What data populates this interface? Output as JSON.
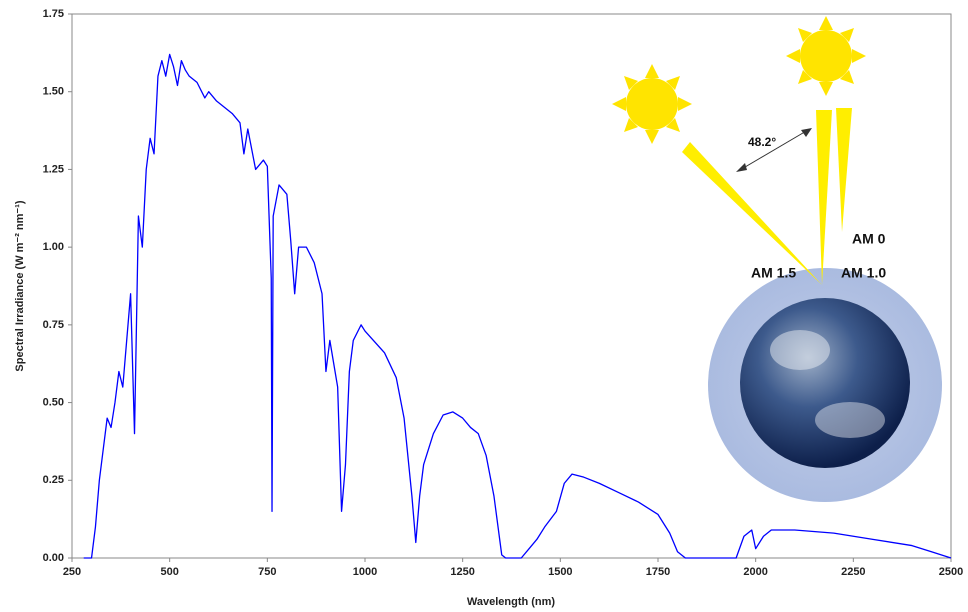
{
  "chart_data": {
    "type": "line",
    "xlabel": "Wavelength (nm)",
    "ylabel": "Spectral Irradiance (W m⁻² nm⁻¹)",
    "annotations": [
      "48.2°",
      "AM 0",
      "AM 1.5",
      "AM 1.0"
    ],
    "xlim": [
      250,
      2500
    ],
    "xticks": [
      250,
      500,
      750,
      1000,
      1250,
      1500,
      1750,
      2000,
      2250,
      2500
    ],
    "ylim": [
      0,
      1.75
    ],
    "yticks": [
      {
        "value": 0,
        "label": "0.00"
      },
      {
        "value": 0.25,
        "label": "0.25"
      },
      {
        "value": 0.5,
        "label": "0.50"
      },
      {
        "value": 0.75,
        "label": "0.75"
      },
      {
        "value": 1,
        "label": "1.00"
      },
      {
        "value": 1.25,
        "label": "1.25"
      },
      {
        "value": 1.5,
        "label": "1.50"
      },
      {
        "value": 1.75,
        "label": "1.75"
      }
    ],
    "series": [
      {
        "color": "#0000ff",
        "x": [
          280,
          300,
          310,
          320,
          330,
          340,
          350,
          360,
          370,
          380,
          390,
          400,
          410,
          420,
          430,
          440,
          450,
          460,
          470,
          480,
          490,
          500,
          510,
          520,
          530,
          540,
          550,
          570,
          590,
          600,
          620,
          640,
          660,
          680,
          690,
          700,
          720,
          740,
          750,
          760,
          762,
          765,
          780,
          800,
          810,
          820,
          830,
          850,
          870,
          890,
          900,
          910,
          930,
          940,
          950,
          960,
          970,
          990,
          1000,
          1050,
          1080,
          1100,
          1120,
          1130,
          1140,
          1150,
          1175,
          1200,
          1225,
          1250,
          1270,
          1290,
          1310,
          1330,
          1350,
          1360,
          1400,
          1420,
          1440,
          1460,
          1490,
          1510,
          1530,
          1560,
          1600,
          1650,
          1700,
          1750,
          1780,
          1800,
          1820,
          1950,
          1970,
          1990,
          2000,
          2020,
          2040,
          2100,
          2200,
          2300,
          2400,
          2450,
          2500
        ],
        "values": [
          0,
          0,
          0.1,
          0.25,
          0.35,
          0.45,
          0.42,
          0.5,
          0.6,
          0.55,
          0.7,
          0.85,
          0.4,
          1.1,
          1.0,
          1.25,
          1.35,
          1.3,
          1.55,
          1.6,
          1.55,
          1.62,
          1.58,
          1.52,
          1.6,
          1.57,
          1.55,
          1.53,
          1.48,
          1.5,
          1.47,
          1.45,
          1.43,
          1.4,
          1.3,
          1.38,
          1.25,
          1.28,
          1.26,
          0.9,
          0.15,
          1.1,
          1.2,
          1.17,
          1.02,
          0.85,
          1.0,
          1.0,
          0.95,
          0.85,
          0.6,
          0.7,
          0.55,
          0.15,
          0.3,
          0.6,
          0.7,
          0.75,
          0.73,
          0.66,
          0.58,
          0.45,
          0.2,
          0.05,
          0.2,
          0.3,
          0.4,
          0.46,
          0.47,
          0.45,
          0.42,
          0.4,
          0.33,
          0.2,
          0.01,
          0,
          0,
          0.03,
          0.06,
          0.1,
          0.15,
          0.24,
          0.27,
          0.26,
          0.24,
          0.21,
          0.18,
          0.14,
          0.08,
          0.02,
          0,
          0,
          0.07,
          0.09,
          0.03,
          0.07,
          0.09,
          0.09,
          0.08,
          0.06,
          0.04,
          0.02,
          0
        ]
      }
    ]
  }
}
